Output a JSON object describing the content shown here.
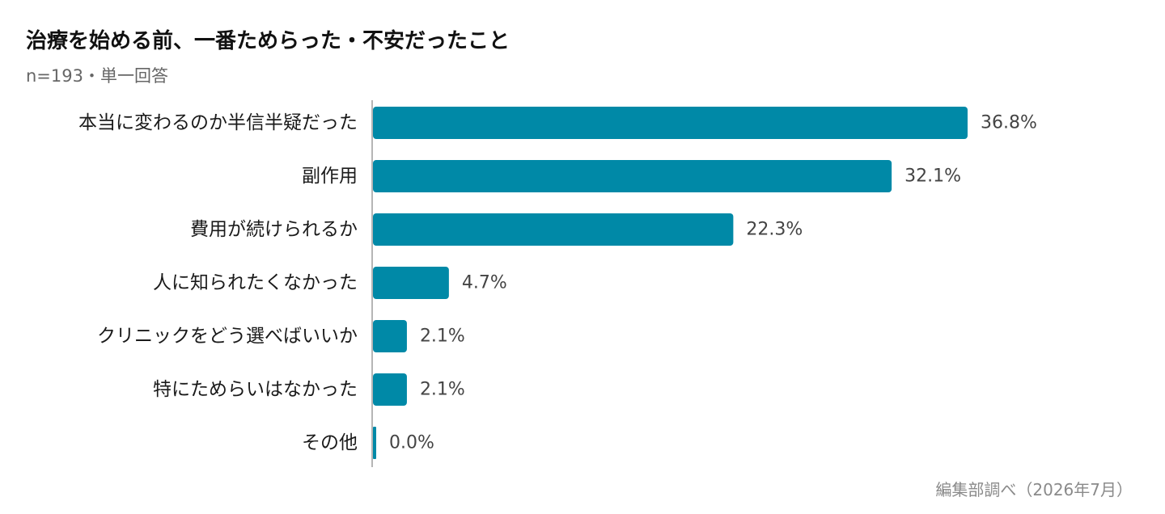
{
  "header": {
    "title": "治療を始める前、一番ためらった・不安だったこと",
    "subtitle": "n=193・単一回答"
  },
  "footer": {
    "source": "編集部調べ（2026年7月）"
  },
  "colors": {
    "bar": "#0089a7",
    "axis": "#b5b5b5"
  },
  "chart_data": {
    "type": "bar",
    "orientation": "horizontal",
    "title": "治療を始める前、一番ためらった・不安だったこと",
    "subtitle": "n=193・単一回答",
    "categories": [
      "本当に変わるのか半信半疑だった",
      "副作用",
      "費用が続けられるか",
      "人に知られたくなかった",
      "クリニックをどう選べばいいか",
      "特にためらいはなかった",
      "その他"
    ],
    "values": [
      36.8,
      32.1,
      22.3,
      4.7,
      2.1,
      2.1,
      0.0
    ],
    "value_labels": [
      "36.8%",
      "32.1%",
      "22.3%",
      "4.7%",
      "2.1%",
      "2.1%",
      "0.0%"
    ],
    "unit": "%",
    "xlim": [
      0,
      40
    ],
    "grid": false,
    "legend": "none"
  }
}
